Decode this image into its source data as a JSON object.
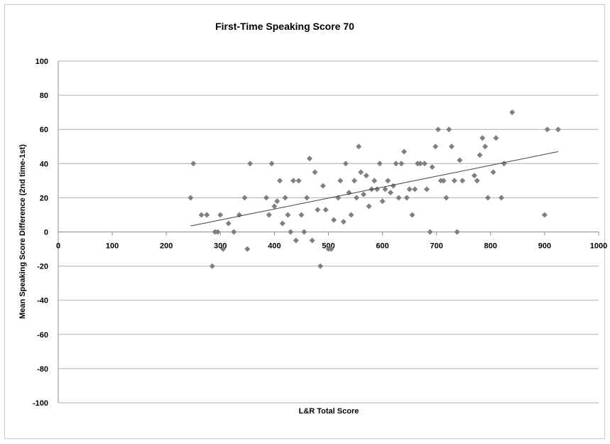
{
  "chart_data": {
    "type": "scatter",
    "title": "First-Time Speaking Score 70",
    "xlabel": "L&R Total Score",
    "ylabel": "Mean Speaking Score Difference (2nd time-1st)",
    "xlim": [
      0,
      1000
    ],
    "ylim": [
      -100,
      100
    ],
    "xticks": [
      "0",
      "100",
      "200",
      "300",
      "400",
      "500",
      "600",
      "700",
      "800",
      "900",
      "1000"
    ],
    "yticks": [
      "100",
      "80",
      "60",
      "40",
      "20",
      "0",
      "-20",
      "-40",
      "-60",
      "-80",
      "-100"
    ],
    "grid": "horizontal",
    "legend": "none",
    "marker_color": "#7f7f7f",
    "trendline": {
      "x": [
        245,
        925
      ],
      "y": [
        3.5,
        47
      ]
    },
    "points": [
      [
        245,
        20
      ],
      [
        250,
        40
      ],
      [
        265,
        10
      ],
      [
        275,
        10
      ],
      [
        285,
        -20
      ],
      [
        290,
        0
      ],
      [
        295,
        0
      ],
      [
        300,
        10
      ],
      [
        305,
        -10
      ],
      [
        315,
        5
      ],
      [
        325,
        0
      ],
      [
        335,
        10
      ],
      [
        345,
        20
      ],
      [
        350,
        -10
      ],
      [
        355,
        40
      ],
      [
        385,
        20
      ],
      [
        390,
        10
      ],
      [
        395,
        40
      ],
      [
        400,
        15
      ],
      [
        405,
        18
      ],
      [
        410,
        30
      ],
      [
        415,
        5
      ],
      [
        420,
        20
      ],
      [
        425,
        10
      ],
      [
        430,
        0
      ],
      [
        435,
        30
      ],
      [
        440,
        -5
      ],
      [
        445,
        30
      ],
      [
        450,
        10
      ],
      [
        455,
        0
      ],
      [
        460,
        20
      ],
      [
        465,
        43
      ],
      [
        470,
        -5
      ],
      [
        475,
        35
      ],
      [
        480,
        13
      ],
      [
        485,
        -20
      ],
      [
        490,
        27
      ],
      [
        495,
        13
      ],
      [
        500,
        -10
      ],
      [
        505,
        -10
      ],
      [
        510,
        7
      ],
      [
        518,
        20
      ],
      [
        522,
        30
      ],
      [
        528,
        6
      ],
      [
        532,
        40
      ],
      [
        538,
        23
      ],
      [
        542,
        10
      ],
      [
        548,
        30
      ],
      [
        552,
        20
      ],
      [
        556,
        50
      ],
      [
        560,
        35
      ],
      [
        565,
        22
      ],
      [
        570,
        33
      ],
      [
        575,
        15
      ],
      [
        580,
        25
      ],
      [
        585,
        30
      ],
      [
        590,
        25
      ],
      [
        595,
        40
      ],
      [
        600,
        18
      ],
      [
        605,
        25
      ],
      [
        610,
        30
      ],
      [
        615,
        23
      ],
      [
        620,
        27
      ],
      [
        625,
        40
      ],
      [
        630,
        20
      ],
      [
        635,
        40
      ],
      [
        640,
        47
      ],
      [
        645,
        20
      ],
      [
        650,
        25
      ],
      [
        655,
        10
      ],
      [
        660,
        25
      ],
      [
        665,
        40
      ],
      [
        670,
        40
      ],
      [
        678,
        40
      ],
      [
        682,
        25
      ],
      [
        688,
        0
      ],
      [
        692,
        38
      ],
      [
        698,
        50
      ],
      [
        703,
        60
      ],
      [
        708,
        30
      ],
      [
        713,
        30
      ],
      [
        718,
        20
      ],
      [
        723,
        60
      ],
      [
        728,
        50
      ],
      [
        733,
        30
      ],
      [
        738,
        0
      ],
      [
        743,
        42
      ],
      [
        748,
        30
      ],
      [
        770,
        33
      ],
      [
        775,
        30
      ],
      [
        780,
        45
      ],
      [
        785,
        55
      ],
      [
        790,
        50
      ],
      [
        795,
        20
      ],
      [
        805,
        35
      ],
      [
        810,
        55
      ],
      [
        820,
        20
      ],
      [
        825,
        40
      ],
      [
        840,
        70
      ],
      [
        900,
        10
      ],
      [
        905,
        60
      ],
      [
        925,
        60
      ]
    ]
  }
}
